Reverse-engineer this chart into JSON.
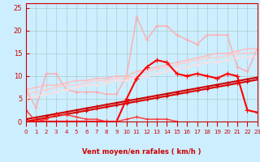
{
  "background_color": "#cceeff",
  "grid_color": "#aacccc",
  "xlabel": "Vent moyen/en rafales ( km/h )",
  "xlabel_color": "#cc0000",
  "tick_color": "#cc0000",
  "xlim": [
    0,
    23
  ],
  "ylim": [
    0,
    26
  ],
  "yticks": [
    0,
    5,
    10,
    15,
    20,
    25
  ],
  "xticks": [
    0,
    1,
    2,
    3,
    4,
    5,
    6,
    7,
    8,
    9,
    10,
    11,
    12,
    13,
    14,
    15,
    16,
    17,
    18,
    19,
    20,
    21,
    22,
    23
  ],
  "series": [
    {
      "x": [
        0,
        1,
        2,
        3,
        4,
        5,
        6,
        7,
        8,
        9,
        10,
        11,
        12,
        13,
        14,
        15,
        16,
        17,
        18,
        19,
        20,
        21,
        22,
        23
      ],
      "y": [
        7,
        3,
        10.5,
        10.5,
        7,
        6.5,
        6.5,
        6.5,
        6,
        6,
        10,
        23,
        18,
        21,
        21,
        19,
        18,
        17,
        19,
        19,
        19,
        12,
        11,
        16
      ],
      "color": "#ffaaaa",
      "linewidth": 1.0,
      "marker": "+",
      "markersize": 3
    },
    {
      "x": [
        0,
        1,
        2,
        3,
        4,
        5,
        6,
        7,
        8,
        9,
        10,
        11,
        12,
        13,
        14,
        15,
        16,
        17,
        18,
        19,
        20,
        21,
        22,
        23
      ],
      "y": [
        7,
        7.5,
        8,
        8,
        8.5,
        9,
        9,
        9.5,
        9.5,
        10,
        10,
        11,
        11.5,
        12,
        12.5,
        13,
        13.5,
        14,
        14.5,
        15,
        15,
        15.5,
        16,
        16
      ],
      "color": "#ffbbbb",
      "linewidth": 1.0,
      "marker": "+",
      "markersize": 3
    },
    {
      "x": [
        0,
        1,
        2,
        3,
        4,
        5,
        6,
        7,
        8,
        9,
        10,
        11,
        12,
        13,
        14,
        15,
        16,
        17,
        18,
        19,
        20,
        21,
        22,
        23
      ],
      "y": [
        6,
        6.5,
        7,
        7.5,
        8,
        8,
        8.5,
        9,
        9,
        9.5,
        9.5,
        10,
        11,
        11.5,
        12,
        12.5,
        13,
        13.5,
        14,
        14,
        14.5,
        15,
        15,
        15.5
      ],
      "color": "#ffcccc",
      "linewidth": 1.0,
      "marker": "+",
      "markersize": 3
    },
    {
      "x": [
        0,
        1,
        2,
        3,
        4,
        5,
        6,
        7,
        8,
        9,
        10,
        11,
        12,
        13,
        14,
        15,
        16,
        17,
        18,
        19,
        20,
        21,
        22,
        23
      ],
      "y": [
        5,
        5.5,
        6,
        6.5,
        7,
        7.5,
        8,
        8,
        8.5,
        9,
        9,
        9.5,
        10,
        10.5,
        11,
        11.5,
        12,
        12.5,
        13,
        13,
        13.5,
        14,
        14,
        14.5
      ],
      "color": "#ffdddd",
      "linewidth": 1.0,
      "marker": "+",
      "markersize": 3
    },
    {
      "x": [
        0,
        1,
        2,
        3,
        4,
        5,
        6,
        7,
        8,
        9,
        10,
        11,
        12,
        13,
        14,
        15,
        16,
        17,
        18,
        19,
        20,
        21,
        22,
        23
      ],
      "y": [
        0,
        0.4,
        0.8,
        1.2,
        1.6,
        2.0,
        2.4,
        2.8,
        3.2,
        3.6,
        4.0,
        4.4,
        4.8,
        5.2,
        5.6,
        6.0,
        6.4,
        6.8,
        7.2,
        7.6,
        8.0,
        8.4,
        8.8,
        9.2
      ],
      "color": "#dd0000",
      "linewidth": 1.5,
      "marker": "+",
      "markersize": 3
    },
    {
      "x": [
        0,
        1,
        2,
        3,
        4,
        5,
        6,
        7,
        8,
        9,
        10,
        11,
        12,
        13,
        14,
        15,
        16,
        17,
        18,
        19,
        20,
        21,
        22,
        23
      ],
      "y": [
        0.5,
        0.9,
        1.3,
        1.7,
        2.1,
        2.5,
        2.9,
        3.3,
        3.7,
        4.1,
        4.5,
        4.9,
        5.3,
        5.7,
        6.1,
        6.5,
        6.9,
        7.3,
        7.7,
        8.1,
        8.5,
        8.9,
        9.3,
        9.7
      ],
      "color": "#cc0000",
      "linewidth": 1.5,
      "marker": "+",
      "markersize": 3
    },
    {
      "x": [
        0,
        1,
        2,
        3,
        4,
        5,
        6,
        7,
        8,
        9,
        10,
        11,
        12,
        13,
        14,
        15,
        16,
        17,
        18,
        19,
        20,
        21,
        22,
        23
      ],
      "y": [
        0,
        0,
        0,
        0,
        0,
        0,
        0,
        0,
        0,
        0,
        5,
        9.5,
        12,
        13.5,
        13,
        10.5,
        10,
        10.5,
        10,
        9.5,
        10.5,
        10,
        2.5,
        2
      ],
      "color": "#ff0000",
      "linewidth": 1.5,
      "marker": "+",
      "markersize": 4
    },
    {
      "x": [
        0,
        1,
        2,
        3,
        4,
        5,
        6,
        7,
        8,
        9,
        10,
        11,
        12,
        13,
        14,
        15
      ],
      "y": [
        2.5,
        0,
        0.5,
        1.5,
        1.5,
        1,
        0.5,
        0.5,
        0,
        0,
        0.5,
        1,
        0.5,
        0.5,
        0.5,
        0
      ],
      "color": "#ff3333",
      "linewidth": 1.0,
      "marker": "+",
      "markersize": 3
    }
  ]
}
